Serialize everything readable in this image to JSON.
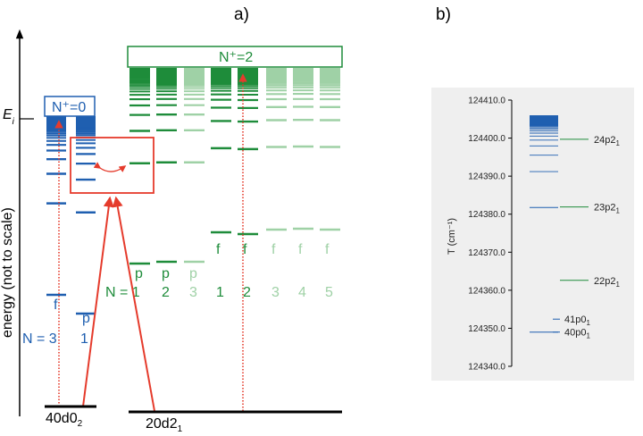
{
  "panel_a": {
    "label": "a)",
    "y_axis_label": "energy (not to scale)",
    "ei_label": "E",
    "ei_sub": "i",
    "nplus0_label": "N⁺=0",
    "nplus2_label": "N⁺=2",
    "left_ground_label": "40d0",
    "left_ground_sub": "2",
    "right_ground_label": "20d2",
    "right_ground_sub": "1",
    "left_columns": [
      {
        "letter": "f",
        "n": "N = 3"
      },
      {
        "letter": "p",
        "n": "1"
      }
    ],
    "right_columns": [
      {
        "letter": "p",
        "n": "N = 1",
        "shade": "dark"
      },
      {
        "letter": "p",
        "n": "2",
        "shade": "dark"
      },
      {
        "letter": "p",
        "n": "3",
        "shade": "light"
      },
      {
        "letter": "f",
        "n": "1",
        "shade": "dark"
      },
      {
        "letter": "f",
        "n": "2",
        "shade": "dark"
      },
      {
        "letter": "f",
        "n": "3",
        "shade": "light"
      },
      {
        "letter": "f",
        "n": "4",
        "shade": "light"
      },
      {
        "letter": "f",
        "n": "5",
        "shade": "light"
      }
    ],
    "colors": {
      "blue": "#1f5fb0",
      "green_dark": "#1e8c3a",
      "green_light": "#9fd1a6",
      "red": "#e53b2c"
    }
  },
  "panel_b": {
    "label": "b)",
    "ylabel": "T (cm⁻¹)",
    "ylim": [
      124340.0,
      124410.0
    ],
    "ticks": [
      "124340.0",
      "124350.0",
      "124360.0",
      "124370.0",
      "124380.0",
      "124390.0",
      "124400.0",
      "124410.0"
    ],
    "series_start": 124349.0,
    "series_limit": 124405.5,
    "annotations": [
      {
        "text": "24p2",
        "sub": "1",
        "value": 124399.7,
        "color": "#1e8c3a"
      },
      {
        "text": "23p2",
        "sub": "1",
        "value": 124381.9,
        "color": "#1e8c3a"
      },
      {
        "text": "22p2",
        "sub": "1",
        "value": 124362.6,
        "color": "#1e8c3a"
      },
      {
        "text": "41p0",
        "sub": "1",
        "value": 124352.4,
        "color": "#1f5fb0"
      },
      {
        "text": "40p0",
        "sub": "1",
        "value": 124349.0,
        "color": "#1f5fb0"
      }
    ],
    "colors": {
      "band": "#1f5fb0",
      "panel_bg": "#efefef",
      "green": "#1e8c3a"
    }
  }
}
